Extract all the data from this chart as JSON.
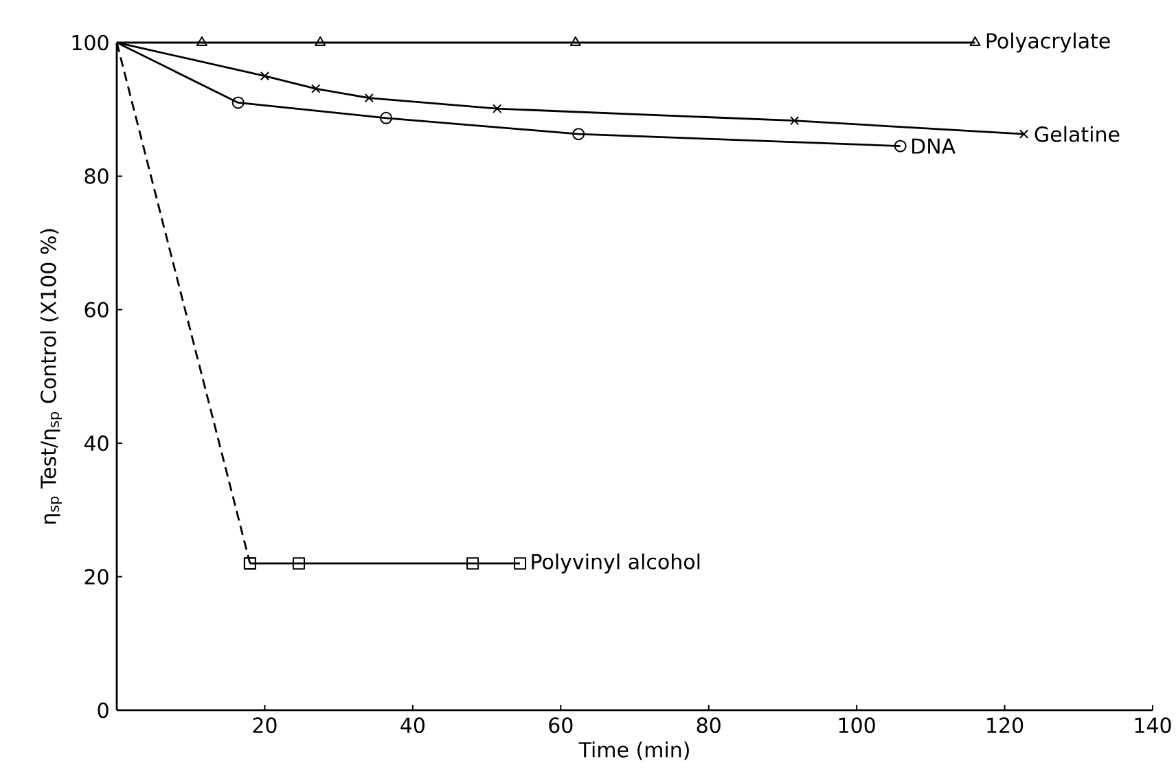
{
  "chart_data": {
    "type": "line",
    "xlabel": "Time (min)",
    "ylabel": "η$_{sp}$ Test/η$_{sp}$ Control (X100 %)",
    "xlim": [
      0,
      140
    ],
    "ylim": [
      0,
      100
    ],
    "xticks": [
      20,
      40,
      60,
      80,
      100,
      120,
      140
    ],
    "yticks": [
      0,
      20,
      40,
      60,
      80,
      100
    ],
    "grid": false,
    "legend": false,
    "series": [
      {
        "name": "Polyacrylate",
        "color": "#000000",
        "marker": "triangle",
        "line_style": "solid",
        "x": [
          0,
          11.5,
          27.5,
          62,
          116
        ],
        "values": [
          100,
          100,
          100,
          100,
          100
        ]
      },
      {
        "name": "Gelatine",
        "color": "#000000",
        "marker": "cross",
        "line_style": "solid",
        "x": [
          0,
          20,
          26.9,
          34.1,
          51.4,
          91.6,
          122.6
        ],
        "values": [
          100,
          95,
          93.1,
          91.7,
          90.1,
          88.3,
          86.3
        ]
      },
      {
        "name": "DNA",
        "color": "#000000",
        "marker": "circle",
        "line_style": "solid",
        "x": [
          0,
          16.4,
          36.4,
          62.4,
          105.9
        ],
        "values": [
          100,
          91,
          88.7,
          86.3,
          84.5
        ]
      },
      {
        "color": "#000000",
        "marker": "square",
        "line_style": "dashed",
        "x": [
          0,
          18
        ],
        "values": [
          100,
          22
        ]
      },
      {
        "name": "Polyvinyl alcohol",
        "color": "#000000",
        "marker": "square",
        "line_style": "solid",
        "x": [
          18,
          24.6,
          48.1,
          54.5
        ],
        "values": [
          22,
          22,
          22,
          22
        ]
      }
    ]
  }
}
